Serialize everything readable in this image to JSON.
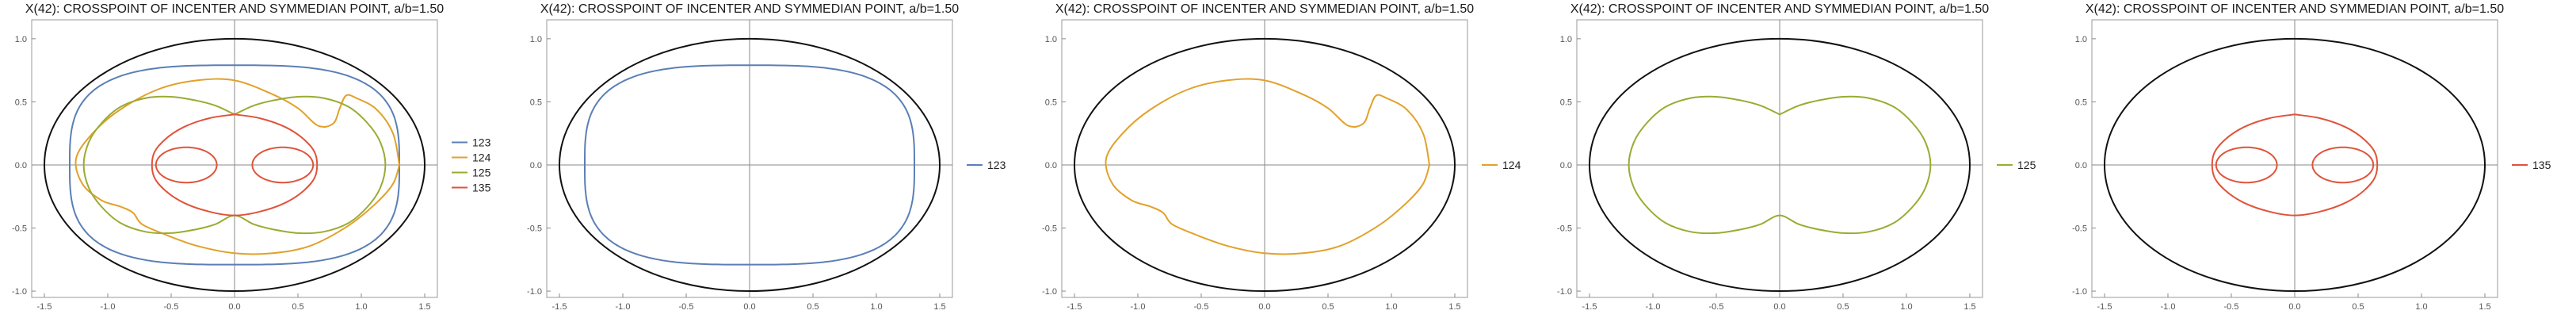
{
  "chart_data": [
    {
      "type": "line",
      "title": "X(42): CROSSPOINT OF INCENTER AND SYMMEDIAN POINT, a/b=1.50",
      "xlim": [
        -1.6,
        1.6
      ],
      "ylim": [
        -1.05,
        1.15
      ],
      "x_ticks": [
        "-1.5",
        "-1.0",
        "-0.5",
        "0.0",
        "0.5",
        "1.0",
        "1.5"
      ],
      "y_ticks": [
        "-1.0",
        "-0.5",
        "0.0",
        "0.5",
        "1.0"
      ],
      "outer_ellipse": {
        "a": 1.5,
        "b": 1.0
      },
      "legend": [
        "123",
        "124",
        "125",
        "135"
      ],
      "series": [
        {
          "name": "123",
          "color": "#5b7fb5"
        },
        {
          "name": "124",
          "color": "#e2a12b"
        },
        {
          "name": "125",
          "color": "#9bab32"
        },
        {
          "name": "135",
          "color": "#e0533a"
        }
      ]
    },
    {
      "type": "line",
      "title": "X(42): CROSSPOINT OF INCENTER AND SYMMEDIAN POINT, a/b=1.50",
      "xlim": [
        -1.6,
        1.6
      ],
      "ylim": [
        -1.05,
        1.15
      ],
      "x_ticks": [
        "-1.5",
        "-1.0",
        "-0.5",
        "0.0",
        "0.5",
        "1.0",
        "1.5"
      ],
      "y_ticks": [
        "-1.0",
        "-0.5",
        "0.0",
        "0.5",
        "1.0"
      ],
      "outer_ellipse": {
        "a": 1.5,
        "b": 1.0
      },
      "legend": [
        "123"
      ],
      "series": [
        {
          "name": "123",
          "color": "#5b7fb5"
        }
      ]
    },
    {
      "type": "line",
      "title": "X(42): CROSSPOINT OF INCENTER AND SYMMEDIAN POINT, a/b=1.50",
      "xlim": [
        -1.6,
        1.6
      ],
      "ylim": [
        -1.05,
        1.15
      ],
      "x_ticks": [
        "-1.5",
        "-1.0",
        "-0.5",
        "0.0",
        "0.5",
        "1.0",
        "1.5"
      ],
      "y_ticks": [
        "-1.0",
        "-0.5",
        "0.0",
        "0.5",
        "1.0"
      ],
      "outer_ellipse": {
        "a": 1.5,
        "b": 1.0
      },
      "legend": [
        "124"
      ],
      "series": [
        {
          "name": "124",
          "color": "#e2a12b"
        }
      ]
    },
    {
      "type": "line",
      "title": "X(42): CROSSPOINT OF INCENTER AND SYMMEDIAN POINT, a/b=1.50",
      "xlim": [
        -1.6,
        1.6
      ],
      "ylim": [
        -1.05,
        1.15
      ],
      "x_ticks": [
        "-1.5",
        "-1.0",
        "-0.5",
        "0.0",
        "0.5",
        "1.0",
        "1.5"
      ],
      "y_ticks": [
        "-1.0",
        "-0.5",
        "0.0",
        "0.5",
        "1.0"
      ],
      "outer_ellipse": {
        "a": 1.5,
        "b": 1.0
      },
      "legend": [
        "125"
      ],
      "series": [
        {
          "name": "125",
          "color": "#9bab32"
        }
      ]
    },
    {
      "type": "line",
      "title": "X(42): CROSSPOINT OF INCENTER AND SYMMEDIAN POINT, a/b=1.50",
      "xlim": [
        -1.6,
        1.6
      ],
      "ylim": [
        -1.05,
        1.15
      ],
      "x_ticks": [
        "-1.5",
        "-1.0",
        "-0.5",
        "0.0",
        "0.5",
        "1.0",
        "1.5"
      ],
      "y_ticks": [
        "-1.0",
        "-0.5",
        "0.0",
        "0.5",
        "1.0"
      ],
      "outer_ellipse": {
        "a": 1.5,
        "b": 1.0
      },
      "legend": [
        "135"
      ],
      "series": [
        {
          "name": "135",
          "color": "#e0533a"
        }
      ]
    }
  ],
  "curves": {
    "123": {
      "kind": "superellipse",
      "a": 1.3,
      "b": 0.79,
      "n": 3.2
    },
    "124": {
      "kind": "points",
      "closed": true,
      "points": [
        [
          1.3,
          0.0
        ],
        [
          1.25,
          0.25
        ],
        [
          1.12,
          0.44
        ],
        [
          0.96,
          0.53
        ],
        [
          0.88,
          0.55
        ],
        [
          0.83,
          0.45
        ],
        [
          0.78,
          0.33
        ],
        [
          0.66,
          0.31
        ],
        [
          0.5,
          0.45
        ],
        [
          0.3,
          0.56
        ],
        [
          0.0,
          0.67
        ],
        [
          -0.3,
          0.67
        ],
        [
          -0.6,
          0.6
        ],
        [
          -0.9,
          0.44
        ],
        [
          -1.12,
          0.25
        ],
        [
          -1.25,
          0.05
        ],
        [
          -1.2,
          -0.15
        ],
        [
          -1.05,
          -0.28
        ],
        [
          -0.9,
          -0.33
        ],
        [
          -0.8,
          -0.38
        ],
        [
          -0.73,
          -0.47
        ],
        [
          -0.55,
          -0.55
        ],
        [
          -0.3,
          -0.64
        ],
        [
          0.0,
          -0.7
        ],
        [
          0.3,
          -0.7
        ],
        [
          0.6,
          -0.64
        ],
        [
          0.9,
          -0.48
        ],
        [
          1.12,
          -0.3
        ],
        [
          1.25,
          -0.15
        ]
      ]
    },
    "125": {
      "kind": "points",
      "closed": true,
      "mirror_x": true,
      "points": [
        [
          0.0,
          0.4
        ],
        [
          0.15,
          0.47
        ],
        [
          0.3,
          0.51
        ],
        [
          0.5,
          0.54
        ],
        [
          0.7,
          0.53
        ],
        [
          0.9,
          0.46
        ],
        [
          1.05,
          0.33
        ],
        [
          1.15,
          0.18
        ],
        [
          1.19,
          0.0
        ],
        [
          1.15,
          -0.18
        ],
        [
          1.05,
          -0.33
        ],
        [
          0.9,
          -0.46
        ],
        [
          0.7,
          -0.53
        ],
        [
          0.5,
          -0.54
        ],
        [
          0.3,
          -0.51
        ],
        [
          0.15,
          -0.47
        ],
        [
          0.0,
          -0.4
        ]
      ]
    },
    "135": {
      "kind": "composite",
      "big": {
        "points": [
          [
            0.0,
            0.4
          ],
          [
            0.2,
            0.37
          ],
          [
            0.4,
            0.3
          ],
          [
            0.55,
            0.2
          ],
          [
            0.64,
            0.08
          ],
          [
            0.64,
            -0.08
          ],
          [
            0.55,
            -0.2
          ],
          [
            0.4,
            -0.3
          ],
          [
            0.2,
            -0.37
          ],
          [
            0.0,
            -0.4
          ]
        ]
      },
      "small_cx": 0.38,
      "small_rx": 0.24,
      "small_ry": 0.14
    }
  },
  "colors": {
    "axis": "#8a8a8a",
    "outer": "#111111",
    "frame": "#9a9a9a"
  }
}
